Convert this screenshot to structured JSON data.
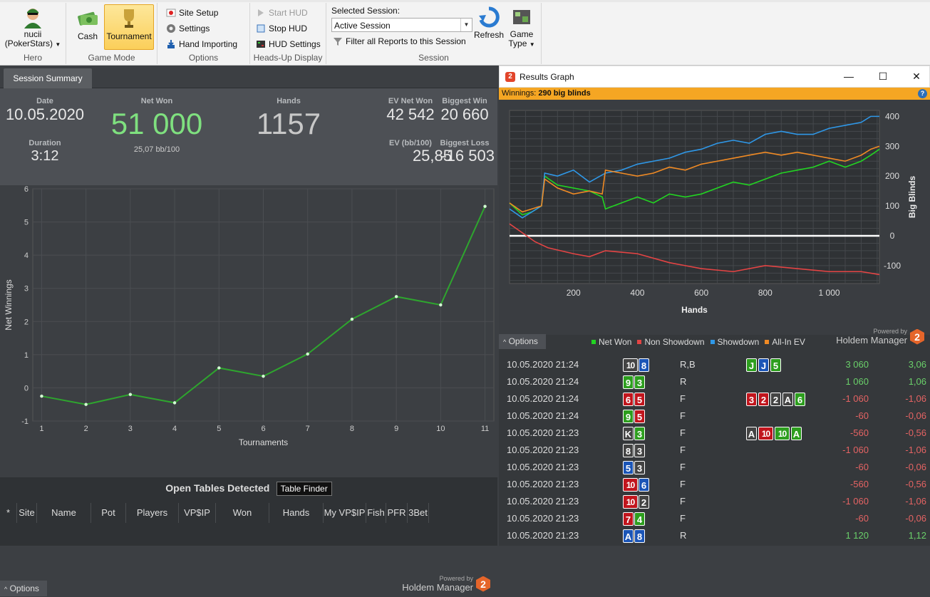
{
  "ribbon": {
    "hero": {
      "name": "nucii",
      "site": "(PokerStars)",
      "group": "Hero"
    },
    "game_mode": {
      "cash": "Cash",
      "tournament": "Tournament",
      "group": "Game Mode"
    },
    "options": {
      "site_setup": "Site Setup",
      "settings": "Settings",
      "hand_importing": "Hand Importing",
      "group": "Options"
    },
    "hud": {
      "start": "Start HUD",
      "stop": "Stop HUD",
      "settings": "HUD Settings",
      "group": "Heads-Up Display"
    },
    "session": {
      "label": "Selected Session:",
      "value": "Active Session",
      "filter": "Filter all Reports to this Session",
      "refresh": "Refresh",
      "game_type_1": "Game",
      "game_type_2": "Type",
      "group": "Session"
    }
  },
  "left": {
    "tab": "Session Summary",
    "summary": {
      "date_label": "Date",
      "date": "10.05.2020",
      "duration_label": "Duration",
      "duration": "3:12",
      "netwon_label": "Net Won",
      "netwon": "51 000",
      "bb100": "25,07 bb/100",
      "hands_label": "Hands",
      "hands": "1157",
      "evnet_label": "EV Net Won",
      "evnet": "42 542",
      "biggestwin_label": "Biggest Win",
      "biggestwin": "20 660",
      "evbb_label": "EV (bb/100)",
      "evbb": "25,85",
      "biggestloss_label": "Biggest Loss",
      "biggestloss": "-16 503"
    },
    "options": "Options",
    "powered_by": "Powered by",
    "brand": "Holdem Manager",
    "brand_badge": "2",
    "open_tables": "Open Tables Detected",
    "table_finder": "Table Finder",
    "columns": [
      "*",
      "Site",
      "Name",
      "Pot",
      "Players",
      "VP$IP",
      "Won",
      "Hands",
      "My VP$IP",
      "Fish",
      "PFR",
      "3Bet"
    ]
  },
  "chart_data": [
    {
      "type": "line",
      "ylabel": "Net Winnings",
      "xlabel": "Tournaments",
      "x": [
        1,
        2,
        3,
        4,
        5,
        6,
        7,
        8,
        9,
        10,
        11
      ],
      "y_ticks": [
        -1,
        0,
        1,
        2,
        3,
        4,
        5,
        6
      ],
      "ylim": [
        -1,
        6
      ],
      "series": [
        {
          "values": [
            -0.25,
            -0.5,
            -0.2,
            -0.45,
            0.6,
            0.35,
            1.02,
            2.07,
            2.75,
            2.5,
            5.47
          ],
          "color": "#2ea52e"
        }
      ],
      "grid": true
    },
    {
      "type": "line",
      "xlabel": "Hands",
      "ylabel": "Big Blinds",
      "x_ticks": [
        "200",
        "400",
        "600",
        "800",
        "1 000"
      ],
      "y_ticks": [
        "-100",
        "0",
        "100",
        "200",
        "300",
        "400"
      ],
      "xlim": [
        0,
        1157
      ],
      "ylim": [
        -160,
        420
      ],
      "grid": true,
      "series": [
        {
          "name": "Net Won",
          "color": "#22d422",
          "points": [
            [
              0,
              110
            ],
            [
              40,
              70
            ],
            [
              70,
              80
            ],
            [
              100,
              100
            ],
            [
              110,
              200
            ],
            [
              150,
              170
            ],
            [
              200,
              160
            ],
            [
              250,
              150
            ],
            [
              290,
              130
            ],
            [
              300,
              90
            ],
            [
              350,
              110
            ],
            [
              400,
              130
            ],
            [
              450,
              110
            ],
            [
              500,
              140
            ],
            [
              550,
              130
            ],
            [
              600,
              140
            ],
            [
              650,
              160
            ],
            [
              700,
              180
            ],
            [
              750,
              170
            ],
            [
              800,
              190
            ],
            [
              850,
              210
            ],
            [
              900,
              220
            ],
            [
              950,
              230
            ],
            [
              1000,
              250
            ],
            [
              1050,
              230
            ],
            [
              1100,
              250
            ],
            [
              1130,
              270
            ],
            [
              1157,
              290
            ]
          ]
        },
        {
          "name": "Non Showdown",
          "color": "#e44444",
          "points": [
            [
              0,
              40
            ],
            [
              40,
              10
            ],
            [
              80,
              -20
            ],
            [
              120,
              -40
            ],
            [
              200,
              -60
            ],
            [
              250,
              -70
            ],
            [
              300,
              -50
            ],
            [
              400,
              -60
            ],
            [
              500,
              -90
            ],
            [
              550,
              -100
            ],
            [
              600,
              -110
            ],
            [
              700,
              -120
            ],
            [
              800,
              -100
            ],
            [
              900,
              -110
            ],
            [
              1000,
              -120
            ],
            [
              1100,
              -120
            ],
            [
              1157,
              -130
            ]
          ]
        },
        {
          "name": "Showdown",
          "color": "#2f98e8",
          "points": [
            [
              0,
              90
            ],
            [
              40,
              60
            ],
            [
              70,
              80
            ],
            [
              100,
              100
            ],
            [
              110,
              210
            ],
            [
              150,
              200
            ],
            [
              200,
              220
            ],
            [
              250,
              180
            ],
            [
              300,
              210
            ],
            [
              350,
              220
            ],
            [
              400,
              240
            ],
            [
              450,
              250
            ],
            [
              500,
              260
            ],
            [
              550,
              280
            ],
            [
              600,
              290
            ],
            [
              650,
              310
            ],
            [
              700,
              320
            ],
            [
              750,
              310
            ],
            [
              800,
              340
            ],
            [
              850,
              350
            ],
            [
              900,
              340
            ],
            [
              950,
              340
            ],
            [
              1000,
              360
            ],
            [
              1050,
              370
            ],
            [
              1100,
              380
            ],
            [
              1130,
              400
            ],
            [
              1157,
              400
            ]
          ]
        },
        {
          "name": "All-In EV",
          "color": "#f08a24",
          "points": [
            [
              0,
              110
            ],
            [
              40,
              80
            ],
            [
              70,
              90
            ],
            [
              100,
              100
            ],
            [
              110,
              190
            ],
            [
              150,
              160
            ],
            [
              200,
              140
            ],
            [
              250,
              150
            ],
            [
              290,
              140
            ],
            [
              300,
              220
            ],
            [
              350,
              210
            ],
            [
              400,
              200
            ],
            [
              450,
              210
            ],
            [
              500,
              230
            ],
            [
              550,
              220
            ],
            [
              600,
              240
            ],
            [
              650,
              250
            ],
            [
              700,
              260
            ],
            [
              750,
              270
            ],
            [
              800,
              280
            ],
            [
              850,
              270
            ],
            [
              900,
              280
            ],
            [
              950,
              270
            ],
            [
              1000,
              260
            ],
            [
              1050,
              250
            ],
            [
              1100,
              270
            ],
            [
              1130,
              290
            ],
            [
              1157,
              300
            ]
          ]
        }
      ]
    }
  ],
  "results_graph": {
    "title": "Results Graph",
    "logo": "2",
    "winnings_label": "Winnings:",
    "winnings_value": "290 big blinds",
    "options": "Options",
    "legend": [
      {
        "name": "Net Won",
        "color": "#22d422"
      },
      {
        "name": "Non Showdown",
        "color": "#e44444"
      },
      {
        "name": "Showdown",
        "color": "#2f98e8"
      },
      {
        "name": "All-In EV",
        "color": "#f08a24"
      }
    ],
    "powered_by": "Powered by",
    "brand": "Holdem Manager",
    "brand_badge": "2"
  },
  "hands": [
    {
      "date": "10.05.2020 21:24",
      "cards": [
        [
          "10",
          "s"
        ],
        [
          "8",
          "d"
        ]
      ],
      "action": "R,B",
      "board": [
        [
          "J",
          "c"
        ],
        [
          "J",
          "d"
        ],
        [
          "5",
          "c"
        ]
      ],
      "won": "3 060",
      "bb": "3,06",
      "sign": "pos"
    },
    {
      "date": "10.05.2020 21:24",
      "cards": [
        [
          "9",
          "c"
        ],
        [
          "3",
          "c"
        ]
      ],
      "action": "R",
      "board": [],
      "won": "1 060",
      "bb": "1,06",
      "sign": "pos"
    },
    {
      "date": "10.05.2020 21:24",
      "cards": [
        [
          "6",
          "h"
        ],
        [
          "5",
          "h"
        ]
      ],
      "action": "F",
      "board": [
        [
          "3",
          "h"
        ],
        [
          "2",
          "h"
        ],
        [
          "2",
          "s"
        ],
        [
          "A",
          "s"
        ],
        [
          "6",
          "c"
        ]
      ],
      "won": "-1 060",
      "bb": "-1,06",
      "sign": "neg"
    },
    {
      "date": "10.05.2020 21:24",
      "cards": [
        [
          "9",
          "c"
        ],
        [
          "5",
          "h"
        ]
      ],
      "action": "F",
      "board": [],
      "won": "-60",
      "bb": "-0,06",
      "sign": "neg"
    },
    {
      "date": "10.05.2020 21:23",
      "cards": [
        [
          "K",
          "s"
        ],
        [
          "3",
          "c"
        ]
      ],
      "action": "F",
      "board": [
        [
          "A",
          "s"
        ],
        [
          "10",
          "h"
        ],
        [
          "10",
          "c"
        ],
        [
          "A",
          "c"
        ]
      ],
      "won": "-560",
      "bb": "-0,56",
      "sign": "neg"
    },
    {
      "date": "10.05.2020 21:23",
      "cards": [
        [
          "8",
          "s"
        ],
        [
          "3",
          "s"
        ]
      ],
      "action": "F",
      "board": [],
      "won": "-1 060",
      "bb": "-1,06",
      "sign": "neg"
    },
    {
      "date": "10.05.2020 21:23",
      "cards": [
        [
          "5",
          "d"
        ],
        [
          "3",
          "s"
        ]
      ],
      "action": "F",
      "board": [],
      "won": "-60",
      "bb": "-0,06",
      "sign": "neg"
    },
    {
      "date": "10.05.2020 21:23",
      "cards": [
        [
          "10",
          "h"
        ],
        [
          "6",
          "d"
        ]
      ],
      "action": "F",
      "board": [],
      "won": "-560",
      "bb": "-0,56",
      "sign": "neg"
    },
    {
      "date": "10.05.2020 21:23",
      "cards": [
        [
          "10",
          "h"
        ],
        [
          "2",
          "s"
        ]
      ],
      "action": "F",
      "board": [],
      "won": "-1 060",
      "bb": "-1,06",
      "sign": "neg"
    },
    {
      "date": "10.05.2020 21:23",
      "cards": [
        [
          "7",
          "h"
        ],
        [
          "4",
          "c"
        ]
      ],
      "action": "F",
      "board": [],
      "won": "-60",
      "bb": "-0,06",
      "sign": "neg"
    },
    {
      "date": "10.05.2020 21:23",
      "cards": [
        [
          "A",
          "d"
        ],
        [
          "8",
          "d"
        ]
      ],
      "action": "R",
      "board": [],
      "won": "1 120",
      "bb": "1,12",
      "sign": "pos"
    }
  ]
}
